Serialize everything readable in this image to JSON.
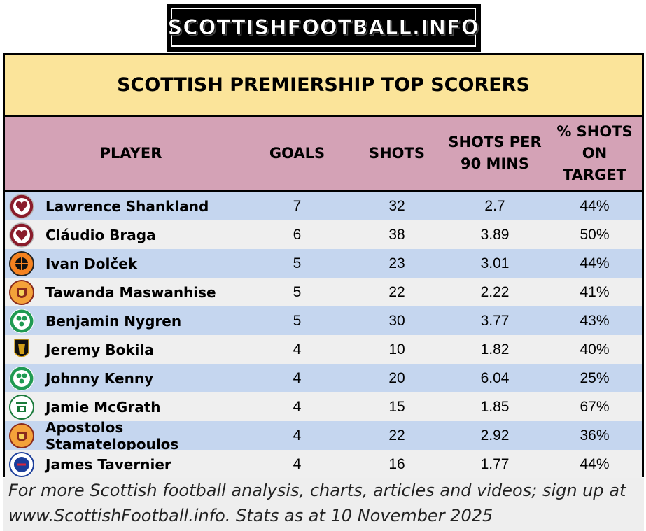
{
  "logo": {
    "text": "SCOTTISHFOOTBALL.INFO"
  },
  "title": "SCOTTISH PREMIERSHIP TOP SCORERS",
  "headers": {
    "player": "PLAYER",
    "goals": "GOALS",
    "shots": "SHOTS",
    "shots_per_90_l1": "SHOTS PER",
    "shots_per_90_l2": "90 MINS",
    "pct_l1": "% SHOTS",
    "pct_l2": "ON",
    "pct_l3": "TARGET"
  },
  "colors": {
    "title_bg": "#fbe49a",
    "header_bg": "#d4a2b6",
    "row_alt": "#c5d6ef",
    "row_plain": "#efefef"
  },
  "chart_data": {
    "type": "table",
    "title": "SCOTTISH PREMIERSHIP TOP SCORERS",
    "columns": [
      "PLAYER",
      "GOALS",
      "SHOTS",
      "SHOTS PER 90 MINS",
      "% SHOTS ON TARGET"
    ],
    "rows": [
      {
        "player": "Lawrence Shankland",
        "crest": "hearts-crest",
        "goals": "7",
        "shots": "32",
        "shots_per_90": "2.7",
        "pct_on_target": "44%"
      },
      {
        "player": "Cláudio Braga",
        "crest": "hearts-crest",
        "goals": "6",
        "shots": "38",
        "shots_per_90": "3.89",
        "pct_on_target": "50%"
      },
      {
        "player": "Ivan Dolček",
        "crest": "dundee-united-crest",
        "goals": "5",
        "shots": "23",
        "shots_per_90": "3.01",
        "pct_on_target": "44%"
      },
      {
        "player": "Tawanda Maswanhise",
        "crest": "motherwell-crest",
        "goals": "5",
        "shots": "22",
        "shots_per_90": "2.22",
        "pct_on_target": "41%"
      },
      {
        "player": "Benjamin Nygren",
        "crest": "celtic-crest",
        "goals": "5",
        "shots": "30",
        "shots_per_90": "3.77",
        "pct_on_target": "43%"
      },
      {
        "player": "Jeremy Bokila",
        "crest": "livingston-crest",
        "goals": "4",
        "shots": "10",
        "shots_per_90": "1.82",
        "pct_on_target": "40%"
      },
      {
        "player": "Johnny Kenny",
        "crest": "celtic-crest",
        "goals": "4",
        "shots": "20",
        "shots_per_90": "6.04",
        "pct_on_target": "25%"
      },
      {
        "player": "Jamie McGrath",
        "crest": "hibernian-crest",
        "goals": "4",
        "shots": "15",
        "shots_per_90": "1.85",
        "pct_on_target": "67%"
      },
      {
        "player": "Apostolos Stamatelopoulos",
        "crest": "motherwell-crest",
        "goals": "4",
        "shots": "22",
        "shots_per_90": "2.92",
        "pct_on_target": "36%"
      },
      {
        "player": "James Tavernier",
        "crest": "rangers-crest",
        "goals": "4",
        "shots": "16",
        "shots_per_90": "1.77",
        "pct_on_target": "44%"
      }
    ]
  },
  "footer": {
    "line1": "For more Scottish football analysis, charts, articles and videos; sign up at",
    "line2": "www.ScottishFootball.info. Stats as at 10 November 2025"
  }
}
